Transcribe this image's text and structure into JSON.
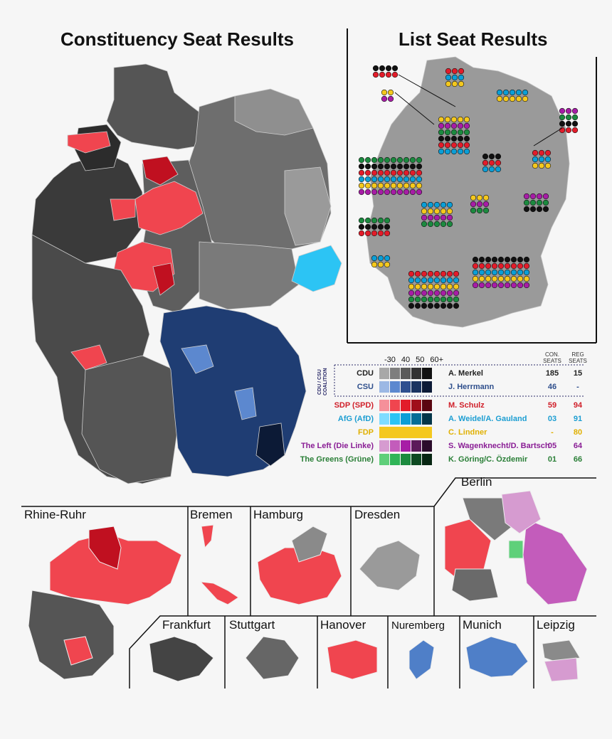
{
  "titles": {
    "constituency": "Constituency Seat Results",
    "list": "List Seat Results"
  },
  "legend": {
    "scale_labels": [
      "-30",
      "40",
      "50",
      "60+"
    ],
    "col_con": [
      "CON.",
      "SEATS"
    ],
    "col_reg": [
      "REG",
      "SEATS"
    ],
    "coalition_label": [
      "CDU / CSU",
      "COALITION"
    ],
    "rows": [
      {
        "party": "CDU",
        "leader": "A. Merkel",
        "con": "185",
        "reg": "15",
        "color": "#222222",
        "text_color": "#222222",
        "shades": [
          "#a8a8a8",
          "#7e7e7e",
          "#5a5a5a",
          "#333333",
          "#111111"
        ]
      },
      {
        "party": "CSU",
        "leader": "J. Herrmann",
        "con": "46",
        "reg": "-",
        "color": "#3b5ea0",
        "text_color": "#2f4f8c",
        "shades": [
          "#9cb8e4",
          "#5c88cf",
          "#2e4f8f",
          "#1b3461",
          "#0c1a36"
        ]
      },
      {
        "party": "SDP (SPD)",
        "leader": "M. Schulz",
        "con": "59",
        "reg": "94",
        "color": "#e4252d",
        "text_color": "#d0202a",
        "shades": [
          "#f5909a",
          "#f0454f",
          "#e21c2a",
          "#a00f1a",
          "#5a0610"
        ]
      },
      {
        "party": "AfG (AfD)",
        "leader": "A. Weidel/A. Gauland",
        "con": "03",
        "reg": "91",
        "color": "#1fa9e0",
        "text_color": "#1c9ed2",
        "shades": [
          "#7fdcff",
          "#2cc4f4",
          "#0b9ed6",
          "#066d96",
          "#033649"
        ]
      },
      {
        "party": "FDP",
        "leader": "C. Lindner",
        "con": "-",
        "reg": "80",
        "color": "#f2c80f",
        "text_color": "#e0b000",
        "shades": [
          "#f4c81e",
          "#f4c81e",
          "#f4c81e",
          "#f4c81e",
          "#f4c81e"
        ]
      },
      {
        "party": "The Left (Die Linke)",
        "leader": "S. Wagenknecht/D. Bartsch",
        "con": "05",
        "reg": "64",
        "color": "#9b1fa0",
        "text_color": "#8a1e95",
        "shades": [
          "#d69bd0",
          "#c35cbb",
          "#a71da6",
          "#5c1a5a",
          "#2b0c2b"
        ]
      },
      {
        "party": "The Greens (Grüne)",
        "leader": "K. Göring/C. Özdemir",
        "con": "01",
        "reg": "66",
        "color": "#2e8b3c",
        "text_color": "#2a7f37",
        "shades": [
          "#60cf7a",
          "#2fb457",
          "#1c8a3f",
          "#0e4a22",
          "#072612"
        ]
      }
    ]
  },
  "insets": {
    "rhine_ruhr": "Rhine-Ruhr",
    "bremen": "Bremen",
    "hamburg": "Hamburg",
    "dresden": "Dresden",
    "berlin": "Berlin",
    "frankfurt": "Frankfurt",
    "stuttgart": "Stuttgart",
    "hanover": "Hanover",
    "nuremberg": "Nuremberg",
    "munich": "Munich",
    "leipzig": "Leipzig"
  },
  "colors": {
    "cdu_dark": "#333333",
    "cdu_mid": "#5a5a5a",
    "cdu_light": "#8a8a8a",
    "csu": "#1f3d73",
    "spd": "#f0454f",
    "spd_dark": "#c01020",
    "afd": "#2cc4f4",
    "left": "#c35cbb",
    "green": "#5fd07a",
    "list_grey": "#9a9a9a"
  }
}
